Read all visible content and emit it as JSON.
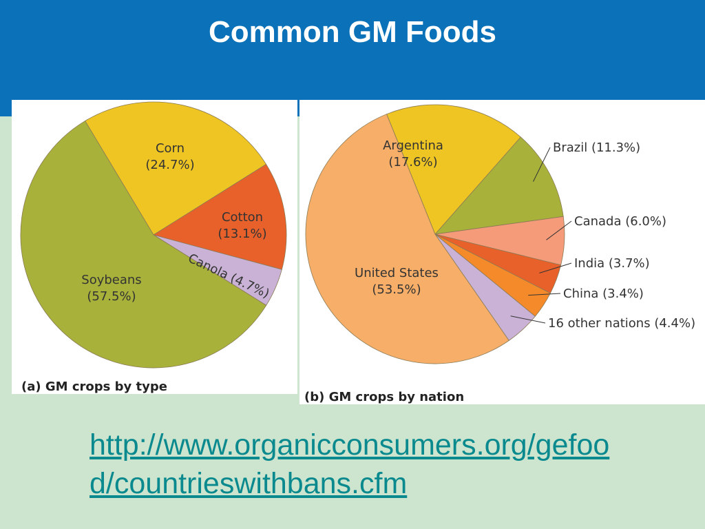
{
  "slide": {
    "title": "Common GM Foods",
    "link": "http://www.organicconsumers.org/gefood/countrieswithbans.cfm",
    "colors": {
      "header": "#0b72b9",
      "background": "#cde5cf",
      "link": "#0a8a8e"
    }
  },
  "chart_data": [
    {
      "type": "pie",
      "title": "(a) GM crops by type",
      "slices": [
        {
          "label": "Corn",
          "pct_label": "(24.7%)",
          "value": 24.7,
          "color": "#eec523"
        },
        {
          "label": "Cotton",
          "pct_label": "(13.1%)",
          "value": 13.1,
          "color": "#e8602a"
        },
        {
          "label": "Canola (4.7%)",
          "pct_label": "",
          "value": 4.7,
          "color": "#c9b2d6"
        },
        {
          "label": "Soybeans",
          "pct_label": "(57.5%)",
          "value": 57.5,
          "color": "#a8b23a"
        }
      ]
    },
    {
      "type": "pie",
      "title": "(b) GM crops by nation",
      "slices": [
        {
          "label": "Argentina",
          "pct_label": "(17.6%)",
          "value": 17.6,
          "color": "#eec523"
        },
        {
          "label": "Brazil (11.3%)",
          "pct_label": "",
          "value": 11.3,
          "color": "#a8b23a"
        },
        {
          "label": "Canada (6.0%)",
          "pct_label": "",
          "value": 6.0,
          "color": "#f59b7a"
        },
        {
          "label": "India (3.7%)",
          "pct_label": "",
          "value": 3.7,
          "color": "#e8602a"
        },
        {
          "label": "China (3.4%)",
          "pct_label": "",
          "value": 3.4,
          "color": "#f48a2a"
        },
        {
          "label": "16 other nations (4.4%)",
          "pct_label": "",
          "value": 4.4,
          "color": "#c9b2d6"
        },
        {
          "label": "United States",
          "pct_label": "(53.5%)",
          "value": 53.5,
          "color": "#f6ae68"
        }
      ]
    }
  ]
}
